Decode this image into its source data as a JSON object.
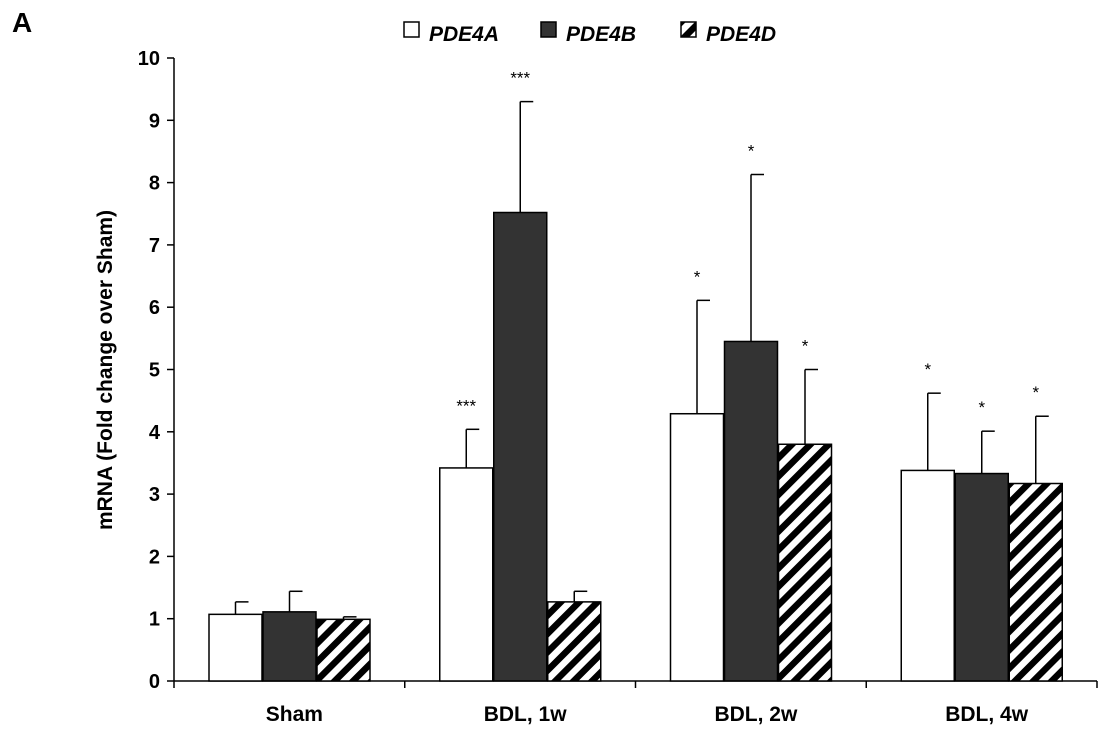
{
  "panel_label": "A",
  "colors": {
    "PDE4A": "#ffffff",
    "PDE4B": "#333333",
    "PDE4D": "hatched black/white",
    "outline": "#000000"
  },
  "chart_data": {
    "type": "bar",
    "title": "",
    "xlabel": "",
    "ylabel": "mRNA (Fold change over Sham)",
    "ylim": [
      0,
      10
    ],
    "yticks": [
      "0",
      "1",
      "2",
      "3",
      "4",
      "5",
      "6",
      "7",
      "8",
      "9",
      "10"
    ],
    "grid": false,
    "legend_position": "top",
    "categories": [
      "Sham",
      "BDL, 1w",
      "BDL, 2w",
      "BDL, 4w"
    ],
    "series": [
      {
        "name": "PDE4A",
        "values": [
          1.07,
          3.42,
          4.29,
          3.38
        ],
        "error": [
          0.2,
          0.62,
          1.82,
          1.24
        ],
        "significance": [
          "",
          "***",
          "*",
          "*"
        ]
      },
      {
        "name": "PDE4B",
        "values": [
          1.11,
          7.52,
          5.45,
          3.33
        ],
        "error": [
          0.33,
          1.78,
          2.68,
          0.68
        ],
        "significance": [
          "",
          "***",
          "*",
          "*"
        ]
      },
      {
        "name": "PDE4D",
        "values": [
          0.99,
          1.27,
          3.8,
          3.17
        ],
        "error": [
          0.04,
          0.17,
          1.2,
          1.08
        ],
        "significance": [
          "",
          "",
          "*",
          "*"
        ]
      }
    ]
  }
}
